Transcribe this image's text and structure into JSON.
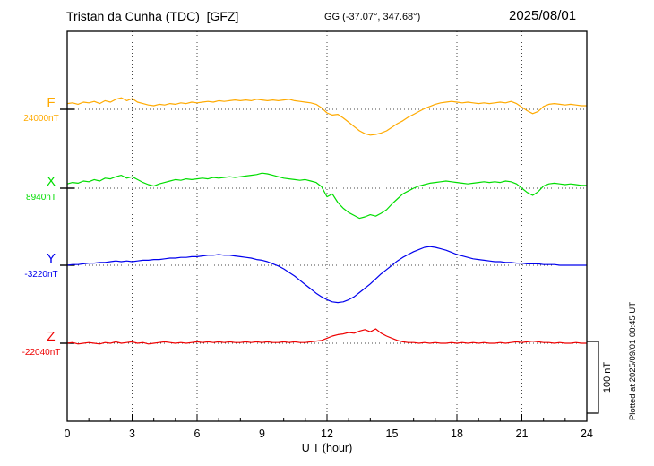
{
  "chart_data": {
    "type": "line",
    "title": "Tristan da Cunha (TDC)  [GFZ]",
    "subtitle": "GG (-37.07°, 347.68°)",
    "date": "2025/08/01",
    "xlabel": "U T (hour)",
    "xlim": [
      0,
      24
    ],
    "x_start": 0,
    "x_step": 0.25,
    "xticks": [
      0,
      3,
      6,
      9,
      12,
      15,
      18,
      21,
      24
    ],
    "grid": "vertical dotted lines every 3 hours; dotted horizontal baseline per component",
    "legend_position": "left margin, one colored label per trace",
    "units": "series values are offsets in nT from each component baseline",
    "scale_bar": {
      "label": "100 nT",
      "nT": 100
    },
    "plotted_note": "Plotted at 2025/09/01 00:45 UT",
    "series": [
      {
        "name": "F",
        "color": "#ffaa00",
        "baseline_label": "24000nT",
        "baseline_nT": 24000,
        "values": [
          8,
          9,
          7,
          10,
          9,
          11,
          8,
          12,
          10,
          14,
          16,
          12,
          15,
          10,
          8,
          6,
          5,
          7,
          6,
          8,
          7,
          9,
          8,
          10,
          9,
          10,
          11,
          10,
          12,
          11,
          12,
          13,
          12,
          13,
          12,
          14,
          13,
          12,
          13,
          12,
          13,
          14,
          12,
          11,
          10,
          9,
          7,
          2,
          -5,
          -8,
          -7,
          -12,
          -18,
          -24,
          -30,
          -34,
          -36,
          -35,
          -33,
          -30,
          -25,
          -20,
          -16,
          -11,
          -7,
          -3,
          1,
          4,
          7,
          9,
          10,
          11,
          10,
          9,
          10,
          9,
          8,
          9,
          8,
          9,
          10,
          9,
          11,
          8,
          3,
          -2,
          -6,
          -3,
          4,
          7,
          8,
          7,
          6,
          7,
          6,
          5,
          5
        ]
      },
      {
        "name": "X",
        "color": "#00dd00",
        "baseline_label": "8940nT",
        "baseline_nT": 8940,
        "values": [
          6,
          8,
          7,
          10,
          9,
          12,
          10,
          14,
          13,
          16,
          18,
          14,
          16,
          12,
          8,
          5,
          3,
          6,
          8,
          10,
          12,
          11,
          13,
          12,
          13,
          14,
          13,
          15,
          14,
          15,
          16,
          15,
          16,
          17,
          18,
          19,
          21,
          20,
          18,
          16,
          14,
          13,
          12,
          11,
          12,
          10,
          8,
          2,
          -12,
          -8,
          -20,
          -28,
          -34,
          -38,
          -42,
          -40,
          -37,
          -39,
          -35,
          -30,
          -22,
          -15,
          -8,
          -4,
          0,
          3,
          5,
          7,
          8,
          9,
          10,
          9,
          8,
          7,
          6,
          7,
          8,
          9,
          8,
          9,
          8,
          10,
          9,
          6,
          0,
          -6,
          -10,
          -5,
          3,
          6,
          7,
          6,
          5,
          6,
          5,
          4,
          4
        ]
      },
      {
        "name": "Y",
        "color": "#0000ee",
        "baseline_label": "-3220nT",
        "baseline_nT": -3220,
        "values": [
          0,
          1,
          1,
          2,
          3,
          3,
          4,
          4,
          5,
          6,
          5,
          6,
          5,
          6,
          7,
          7,
          8,
          8,
          9,
          10,
          10,
          11,
          11,
          12,
          12,
          13,
          14,
          14,
          15,
          14,
          14,
          13,
          12,
          11,
          10,
          8,
          7,
          5,
          2,
          -1,
          -5,
          -10,
          -15,
          -21,
          -27,
          -33,
          -39,
          -44,
          -48,
          -51,
          -52,
          -51,
          -48,
          -44,
          -38,
          -32,
          -26,
          -19,
          -12,
          -6,
          0,
          6,
          11,
          15,
          19,
          22,
          25,
          26,
          25,
          23,
          21,
          18,
          15,
          13,
          11,
          9,
          8,
          7,
          6,
          5,
          5,
          4,
          4,
          3,
          3,
          2,
          2,
          2,
          1,
          1,
          1,
          0,
          0,
          0,
          0,
          0,
          0
        ]
      },
      {
        "name": "Z",
        "color": "#ee0000",
        "baseline_label": "-22040nT",
        "baseline_nT": -22040,
        "values": [
          0,
          1,
          -1,
          0,
          1,
          0,
          -1,
          1,
          0,
          2,
          0,
          1,
          2,
          0,
          1,
          -1,
          0,
          1,
          2,
          1,
          0,
          1,
          0,
          1,
          2,
          1,
          2,
          1,
          2,
          1,
          2,
          1,
          1,
          2,
          1,
          2,
          1,
          2,
          1,
          1,
          2,
          1,
          2,
          1,
          1,
          2,
          3,
          4,
          7,
          10,
          12,
          13,
          15,
          14,
          17,
          19,
          16,
          20,
          14,
          10,
          7,
          4,
          2,
          1,
          1,
          0,
          1,
          0,
          1,
          0,
          0,
          1,
          0,
          1,
          0,
          1,
          0,
          1,
          0,
          0,
          1,
          0,
          1,
          2,
          1,
          2,
          3,
          2,
          1,
          1,
          0,
          1,
          0,
          0,
          1,
          0,
          0
        ]
      }
    ]
  }
}
